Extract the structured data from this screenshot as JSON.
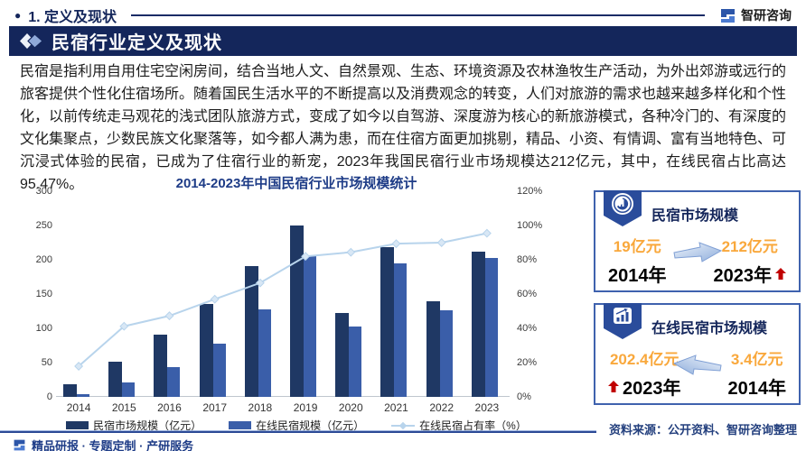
{
  "header": {
    "bullet": "●",
    "section_label": "1. 定义及现状",
    "logo_text": "智研咨询"
  },
  "title_bar": {
    "text": "民宿行业定义及现状"
  },
  "paragraph": "民宿是指利用自用住宅空闲房间，结合当地人文、自然景观、生态、环境资源及农林渔牧生产活动，为外出郊游或远行的旅客提供个性化住宿场所。随着国民生活水平的不断提高以及消费观念的转变，人们对旅游的需求也越来越多样化和个性化，以前传统走马观花的浅式团队旅游方式，变成了如今以自驾游、深度游为核心的新旅游模式，各种冷门的、有深度的文化集聚点，少数民族文化聚落等，如今都人满为患，而在住宿方面更加挑剔，精品、小资、有情调、富有当地特色、可沉浸式体验的民宿，已成为了住宿行业的新宠，2023年我国民宿行业市场规模达212亿元，其中，在线民宿占比高达95.47%。",
  "chart_data": {
    "type": "bar",
    "title": "2014-2023年中国民宿行业市场规模统计",
    "categories": [
      "2014",
      "2015",
      "2016",
      "2017",
      "2018",
      "2019",
      "2020",
      "2021",
      "2022",
      "2023"
    ],
    "series": [
      {
        "name": "民宿市场规模（亿元）",
        "type": "bar",
        "axis": "left",
        "color": "#1F3864",
        "values": [
          19,
          51,
          91,
          135,
          191,
          250,
          122,
          218,
          140,
          212
        ]
      },
      {
        "name": "在线民宿规模（亿元）",
        "type": "bar",
        "axis": "left",
        "color": "#3A5EA9",
        "values": [
          3.4,
          21,
          43,
          77,
          127,
          205,
          103,
          195,
          126,
          202.4
        ]
      },
      {
        "name": "在线民宿占有率（%）",
        "type": "line",
        "axis": "right",
        "color": "#B8D4EC",
        "values": [
          17.9,
          41.2,
          47.3,
          57,
          66.5,
          82,
          84.4,
          89.4,
          90,
          95.47
        ]
      }
    ],
    "left_axis": {
      "min": 0,
      "max": 300,
      "step": 50
    },
    "right_axis": {
      "min": 0,
      "max": 120,
      "step": 20,
      "suffix": "%"
    },
    "legend_position": "bottom",
    "grid": false
  },
  "panels": [
    {
      "title": "民宿市场规模",
      "icon": "pie-chart-badge",
      "left_value": "19亿元",
      "left_year": "2014年",
      "right_value": "212亿元",
      "right_year": "2023年",
      "arrow_direction": "right"
    },
    {
      "title": "在线民宿市场规模",
      "icon": "bar-chart-badge",
      "left_value": "202.4亿元",
      "left_year": "2023年",
      "right_value": "3.4亿元",
      "right_year": "2014年",
      "arrow_direction": "left"
    }
  ],
  "source_note": "资料来源：公开资料、智研咨询整理",
  "footer": {
    "slogan": "精品研报 · 专题定制 · 产研服务"
  },
  "colors": {
    "navy": "#14265B",
    "bar_dark": "#1F3864",
    "bar_light": "#3A5EA9",
    "line_light_blue": "#B8D4EC",
    "orange": "#F9A83C",
    "red": "#C00000",
    "panel_border": "#3F62AE"
  }
}
